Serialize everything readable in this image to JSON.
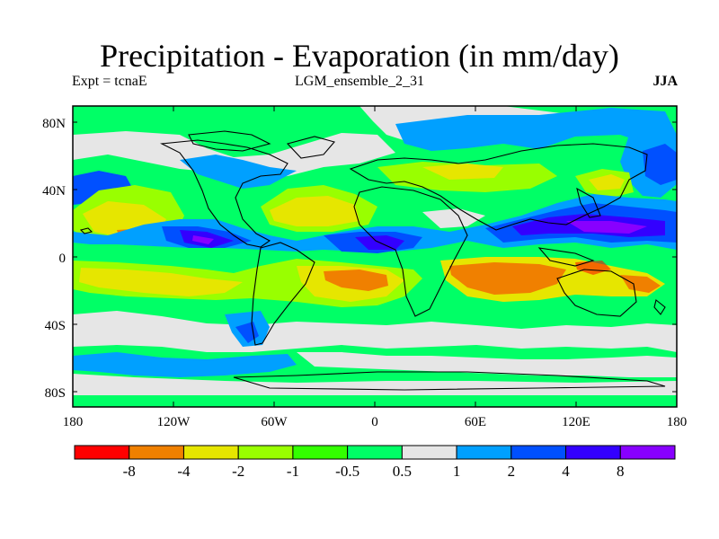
{
  "header": {
    "title": "Precipitation - Evaporation (in mm/day)",
    "experiment": "Expt = tcnaE",
    "run_name": "LGM_ensemble_2_31",
    "season": "JJA"
  },
  "map": {
    "lat_ticks": [
      "80N",
      "40N",
      "0",
      "40S",
      "80S"
    ],
    "lon_ticks": [
      "180",
      "120W",
      "60W",
      "0",
      "60E",
      "120E",
      "180"
    ],
    "background_color": "#00ff66"
  },
  "colorbar": {
    "colors": [
      "#ff0000",
      "#f08000",
      "#e6e600",
      "#99ff00",
      "#33ff00",
      "#00ff66",
      "#e6e6e6",
      "#00a0ff",
      "#0050ff",
      "#3300ff",
      "#8800ff"
    ],
    "labels": [
      "-8",
      "-4",
      "-2",
      "-1",
      "-0.5",
      "0.5",
      "1",
      "2",
      "4",
      "8"
    ]
  }
}
